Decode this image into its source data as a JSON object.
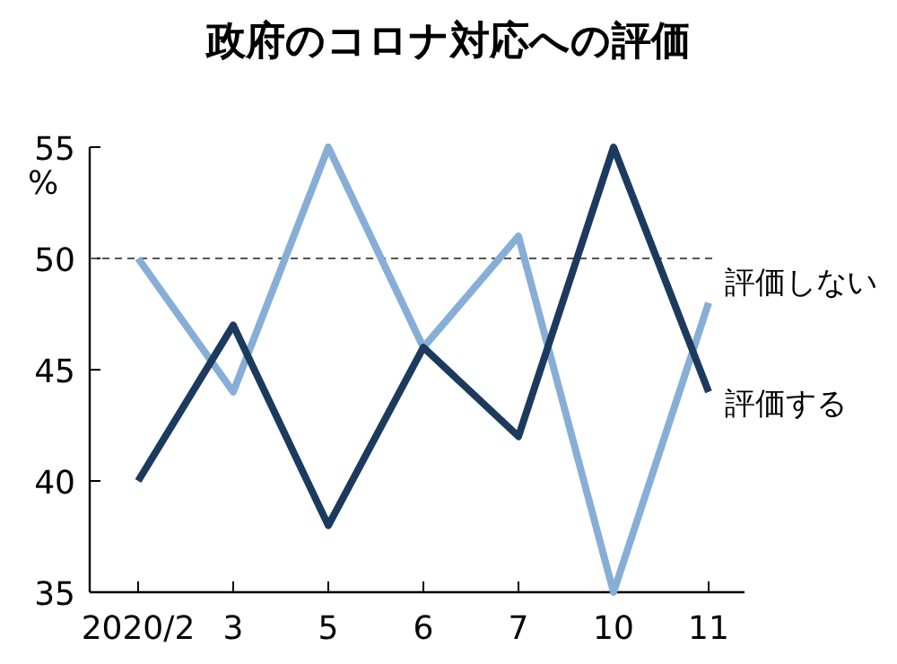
{
  "chart_data": {
    "type": "line",
    "title": "政府のコロナ対応への評価",
    "ylabel": "%",
    "categories": [
      "2020/2",
      "3",
      "5",
      "6",
      "7",
      "10",
      "11"
    ],
    "series": [
      {
        "name": "評価しない",
        "color": "#86aed6",
        "values": [
          50,
          44,
          55,
          46,
          51,
          35,
          48
        ]
      },
      {
        "name": "評価する",
        "color": "#1c3a5e",
        "values": [
          40,
          47,
          38,
          46,
          42,
          55,
          44
        ]
      }
    ],
    "ylim": [
      35,
      55
    ],
    "yticks": [
      35,
      40,
      45,
      50,
      55
    ],
    "ref_lines": [
      {
        "axis": "y",
        "value": 50,
        "line_style": "dashed",
        "color": "#555555"
      }
    ],
    "legend": false,
    "grid": false,
    "marker": "none",
    "line_style": "solid"
  }
}
